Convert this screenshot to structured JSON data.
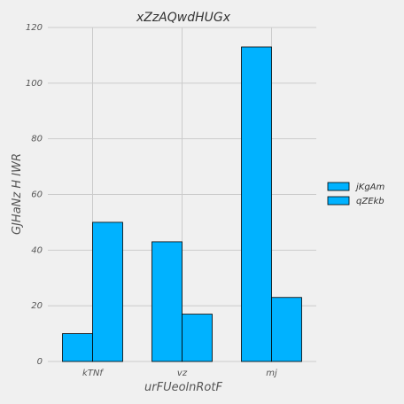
{
  "chart_data": {
    "type": "bar",
    "title": "xZzAQwdHUGx",
    "xlabel": "urFUeolnRotF",
    "ylabel": "GJHaNz  H IWR",
    "categories": [
      "kTNf",
      "vz",
      "mj"
    ],
    "series": [
      {
        "name": "jKgAm",
        "values": [
          10,
          43,
          113
        ],
        "color": "#00b2ff"
      },
      {
        "name": "qZEkb",
        "values": [
          50,
          17,
          23
        ],
        "color": "#00b2ff"
      }
    ],
    "ylim": [
      0,
      120
    ],
    "yticks": [
      0,
      20,
      40,
      60,
      80,
      100,
      120
    ],
    "grid": true,
    "legend": "right",
    "colors": {
      "background": "#f0f0f0",
      "grid": "#cbcbcb",
      "bar_edge": "#000000"
    }
  }
}
